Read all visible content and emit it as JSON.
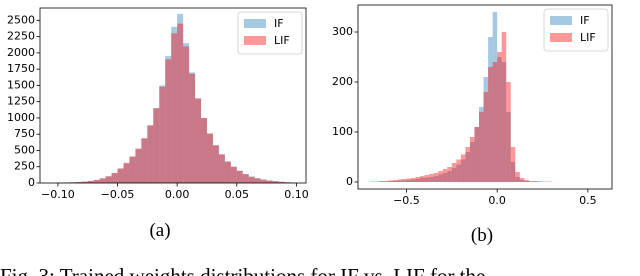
{
  "chart_data": [
    {
      "type": "histogram",
      "subcaption": "(a)",
      "bins": [
        -0.1,
        -0.095,
        -0.09,
        -0.085,
        -0.08,
        -0.075,
        -0.07,
        -0.065,
        -0.06,
        -0.055,
        -0.05,
        -0.045,
        -0.04,
        -0.035,
        -0.03,
        -0.025,
        -0.02,
        -0.015,
        -0.01,
        -0.005,
        0,
        0.005,
        0.01,
        0.015,
        0.02,
        0.025,
        0.03,
        0.035,
        0.04,
        0.045,
        0.05,
        0.055,
        0.06,
        0.065,
        0.07,
        0.075,
        0.08,
        0.085,
        0.09,
        0.095,
        0.1
      ],
      "series": [
        {
          "name": "IF",
          "color": "#1f77b4",
          "values": [
            5,
            8,
            10,
            15,
            20,
            30,
            45,
            70,
            100,
            150,
            220,
            300,
            400,
            520,
            680,
            880,
            1150,
            1500,
            1950,
            2400,
            2600,
            2150,
            1700,
            1300,
            1000,
            760,
            580,
            440,
            330,
            250,
            190,
            140,
            100,
            75,
            55,
            40,
            30,
            20,
            12,
            8
          ]
        },
        {
          "name": "LIF",
          "color": "#ff0000",
          "values": [
            6,
            9,
            12,
            16,
            22,
            32,
            48,
            72,
            105,
            155,
            225,
            310,
            410,
            530,
            690,
            890,
            1150,
            1480,
            1900,
            2300,
            2450,
            2100,
            1680,
            1300,
            1000,
            760,
            580,
            440,
            330,
            250,
            185,
            135,
            95,
            70,
            50,
            36,
            26,
            18,
            10,
            6
          ]
        }
      ],
      "alpha": 0.4,
      "xlim": [
        -0.115,
        0.108
      ],
      "ylim": [
        0,
        2690
      ],
      "xticks": [
        {
          "value": -0.1,
          "label": "−0.10"
        },
        {
          "value": -0.05,
          "label": "−0.05"
        },
        {
          "value": 0,
          "label": "0.00"
        },
        {
          "value": 0.05,
          "label": "0.05"
        },
        {
          "value": 0.1,
          "label": "0.10"
        }
      ],
      "yticks": [
        0,
        250,
        500,
        750,
        1000,
        1250,
        1500,
        1750,
        2000,
        2250,
        2500
      ],
      "legend": "upper right"
    },
    {
      "type": "histogram",
      "subcaption": "(b)",
      "bins": [
        -0.7,
        -0.675,
        -0.65,
        -0.625,
        -0.6,
        -0.575,
        -0.55,
        -0.525,
        -0.5,
        -0.475,
        -0.45,
        -0.425,
        -0.4,
        -0.375,
        -0.35,
        -0.325,
        -0.3,
        -0.275,
        -0.25,
        -0.225,
        -0.2,
        -0.175,
        -0.15,
        -0.125,
        -0.1,
        -0.075,
        -0.05,
        -0.025,
        0,
        0.025,
        0.05,
        0.075,
        0.1,
        0.125,
        0.15,
        0.175,
        0.2,
        0.225,
        0.25,
        0.275,
        0.3,
        0.325,
        0.35,
        0.375,
        0.4,
        0.425,
        0.45,
        0.475,
        0.5,
        0.525,
        0.55,
        0.575,
        0.6
      ],
      "series": [
        {
          "name": "IF",
          "color": "#1f77b4",
          "values": [
            0,
            0,
            1,
            1,
            2,
            2,
            3,
            3,
            4,
            5,
            6,
            8,
            9,
            10,
            12,
            15,
            18,
            22,
            28,
            35,
            45,
            60,
            80,
            110,
            150,
            210,
            290,
            340,
            250,
            240,
            140,
            40,
            10,
            4,
            2,
            1,
            1,
            1,
            0,
            0,
            0,
            0,
            0,
            0,
            0,
            0,
            0,
            0,
            0,
            0,
            0,
            0
          ]
        },
        {
          "name": "LIF",
          "color": "#ff0000",
          "values": [
            1,
            1,
            2,
            2,
            3,
            4,
            5,
            6,
            7,
            8,
            10,
            12,
            14,
            16,
            18,
            22,
            26,
            30,
            38,
            45,
            55,
            70,
            90,
            110,
            140,
            180,
            230,
            240,
            260,
            300,
            200,
            70,
            20,
            8,
            4,
            2,
            2,
            1,
            1,
            1,
            0,
            0,
            0,
            0,
            0,
            0,
            0,
            0,
            0,
            0,
            0,
            0
          ]
        }
      ],
      "alpha": 0.4,
      "xlim": [
        -0.767,
        0.633
      ],
      "ylim": [
        -14,
        354
      ],
      "xticks": [
        {
          "value": -0.5,
          "label": "−0.5"
        },
        {
          "value": 0,
          "label": "0.0"
        },
        {
          "value": 0.5,
          "label": "0.5"
        }
      ],
      "yticks": [
        0,
        100,
        200,
        300
      ],
      "legend": "upper right"
    }
  ],
  "caption": "Fig. 3: Trained weights distributions for IF vs. LIF for the"
}
